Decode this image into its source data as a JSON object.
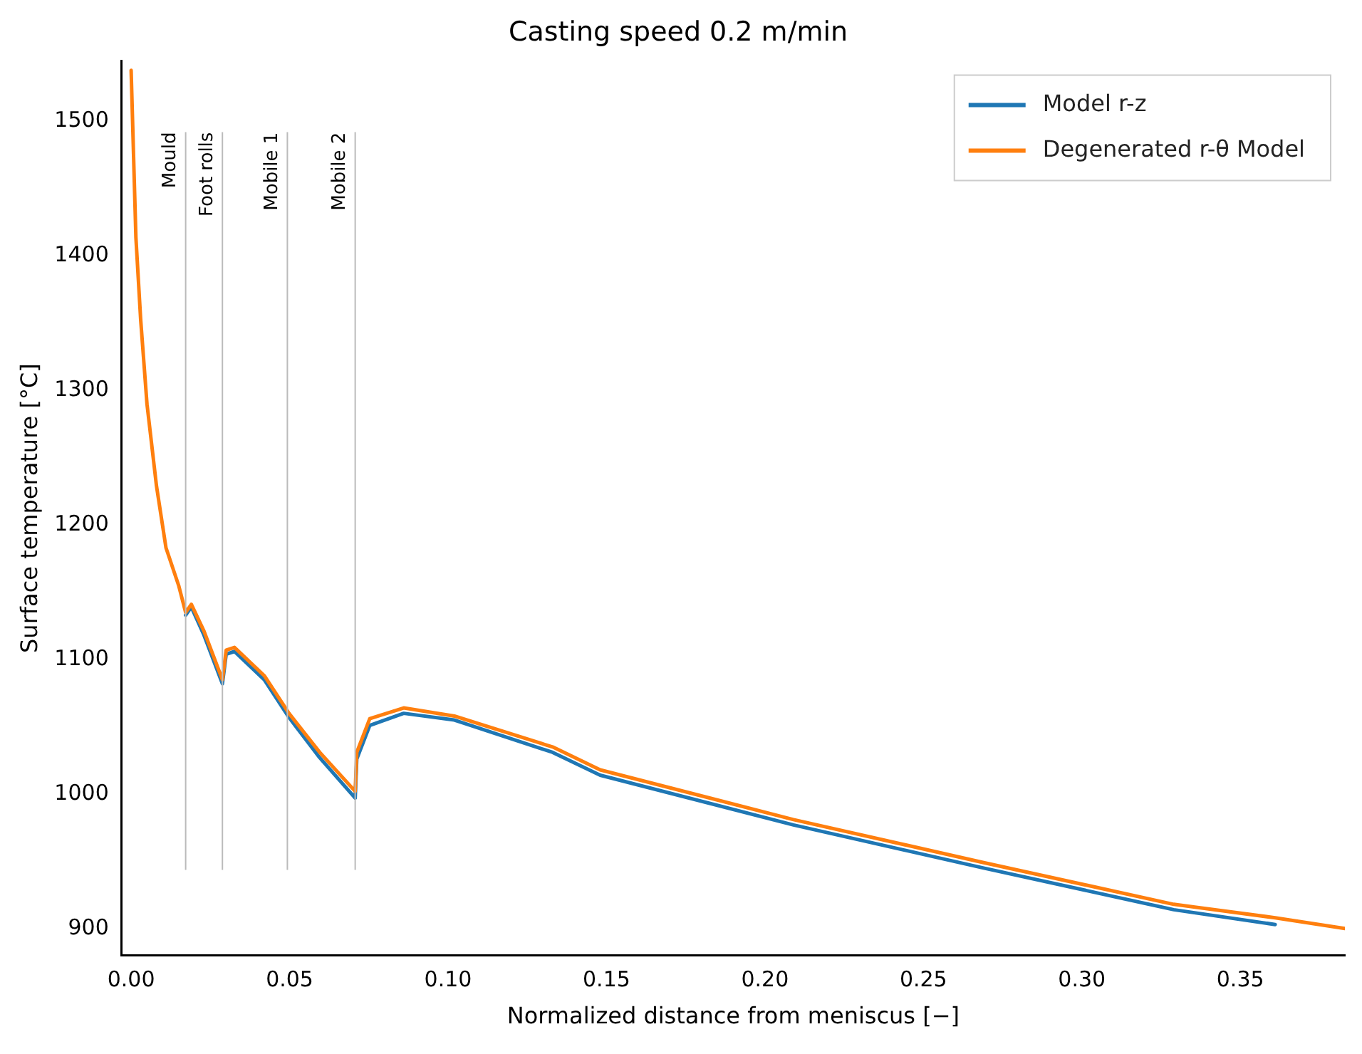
{
  "chart_data": {
    "type": "line",
    "title": "Casting speed 0.2 m/min",
    "xlabel": "Normalized distance from meniscus [−]",
    "ylabel": "Surface temperature [°C]",
    "series": [
      {
        "name": "Model r-z",
        "color": "#1f77b4",
        "x": [
          0.0172,
          0.019,
          0.023,
          0.0288,
          0.03,
          0.0326,
          0.042,
          0.0498,
          0.0595,
          0.0707,
          0.0712,
          0.0753,
          0.086,
          0.102,
          0.133,
          0.148,
          0.209,
          0.269,
          0.329,
          0.361
        ],
        "values": [
          1133,
          1139,
          1118,
          1082,
          1104,
          1106,
          1085,
          1057,
          1027,
          997,
          1026,
          1051,
          1060,
          1055,
          1031,
          1014,
          977,
          945,
          914,
          903
        ]
      },
      {
        "name": "Degenerated r-θ Model",
        "color": "#ff7f0e",
        "x": [
          0,
          0.0015,
          0.003,
          0.005,
          0.008,
          0.011,
          0.015,
          0.0172,
          0.019,
          0.023,
          0.0288,
          0.03,
          0.0326,
          0.042,
          0.0498,
          0.0595,
          0.0707,
          0.0712,
          0.0753,
          0.086,
          0.102,
          0.133,
          0.148,
          0.209,
          0.269,
          0.329,
          0.361,
          0.383
        ],
        "values": [
          1538,
          1414,
          1353,
          1290,
          1229,
          1183,
          1155,
          1135,
          1141,
          1121,
          1085,
          1107,
          1109,
          1088,
          1060,
          1031,
          1002,
          1031,
          1056,
          1064,
          1058,
          1035,
          1018,
          981,
          949,
          918,
          908,
          900
        ]
      }
    ],
    "xlim": [
      -0.003,
      0.383
    ],
    "ylim": [
      880,
      1545
    ],
    "xticks": [
      {
        "value": 0,
        "label": "0.00"
      },
      {
        "value": 0.05,
        "label": "0.05"
      },
      {
        "value": 0.1,
        "label": "0.10"
      },
      {
        "value": 0.15,
        "label": "0.15"
      },
      {
        "value": 0.2,
        "label": "0.20"
      },
      {
        "value": 0.25,
        "label": "0.25"
      },
      {
        "value": 0.3,
        "label": "0.30"
      },
      {
        "value": 0.35,
        "label": "0.35"
      }
    ],
    "yticks": [
      900,
      1000,
      1100,
      1200,
      1300,
      1400,
      1500
    ],
    "ref_lines": [
      {
        "axis": "x",
        "value": 0.0172,
        "label": "Mould",
        "color": "#bbbbbb"
      },
      {
        "axis": "x",
        "value": 0.0288,
        "label": "Foot rolls",
        "color": "#bbbbbb"
      },
      {
        "axis": "x",
        "value": 0.0493,
        "label": "Mobile 1",
        "color": "#bbbbbb"
      },
      {
        "axis": "x",
        "value": 0.0707,
        "label": "Mobile 2",
        "color": "#bbbbbb"
      }
    ],
    "grid": false,
    "legend": "top right",
    "marker": "none",
    "line_style": "solid"
  }
}
